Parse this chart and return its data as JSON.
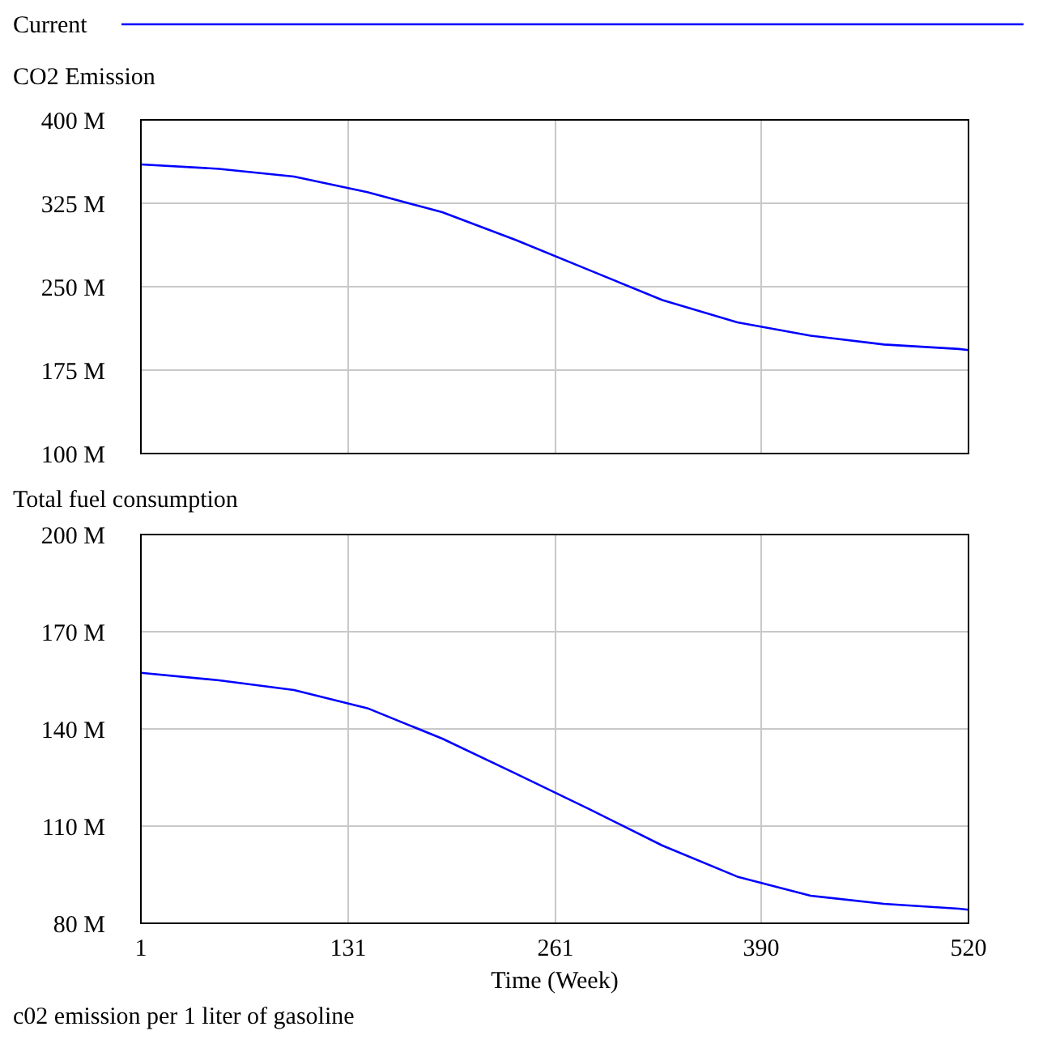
{
  "chart_data": [
    {
      "type": "line",
      "title": "CO2 Emission",
      "x": [
        1,
        50,
        97,
        143,
        190,
        236,
        282,
        328,
        375,
        421,
        467,
        514,
        520
      ],
      "series": [
        {
          "name": "Current",
          "color": "#0000ff",
          "values": [
            360,
            356,
            349,
            335,
            317,
            292,
            265,
            238,
            218,
            206,
            198,
            194,
            193
          ]
        }
      ],
      "xlim": [
        1,
        520
      ],
      "xticks": [
        1,
        131,
        261,
        390,
        520
      ],
      "ylim": [
        100,
        400
      ],
      "yticks": [
        {
          "value": 100,
          "label": "100 M"
        },
        {
          "value": 175,
          "label": "175 M"
        },
        {
          "value": 250,
          "label": "250 M"
        },
        {
          "value": 325,
          "label": "325 M"
        },
        {
          "value": 400,
          "label": "400 M"
        }
      ],
      "grid": true,
      "legend": "top",
      "tick_labels": "y"
    },
    {
      "type": "line",
      "title": "Total fuel consumption",
      "xlabel": "Time (Week)",
      "x": [
        1,
        50,
        97,
        143,
        190,
        236,
        282,
        328,
        375,
        421,
        467,
        514,
        520
      ],
      "series": [
        {
          "color": "#0000ff",
          "values": [
            157.3,
            155,
            152,
            146.4,
            137,
            126.2,
            115.3,
            104,
            94.4,
            88.5,
            86,
            84.5,
            84.2
          ]
        }
      ],
      "xlim": [
        1,
        520
      ],
      "xticks": [
        1,
        131,
        261,
        390,
        520
      ],
      "ylim": [
        80,
        200
      ],
      "yticks": [
        {
          "value": 80,
          "label": "80 M"
        },
        {
          "value": 110,
          "label": "110 M"
        },
        {
          "value": 140,
          "label": "140 M"
        },
        {
          "value": 170,
          "label": "170 M"
        },
        {
          "value": 200,
          "label": "200 M"
        }
      ],
      "grid": true,
      "annotations": [
        "c02 emission per 1 liter of gasoline"
      ]
    }
  ]
}
